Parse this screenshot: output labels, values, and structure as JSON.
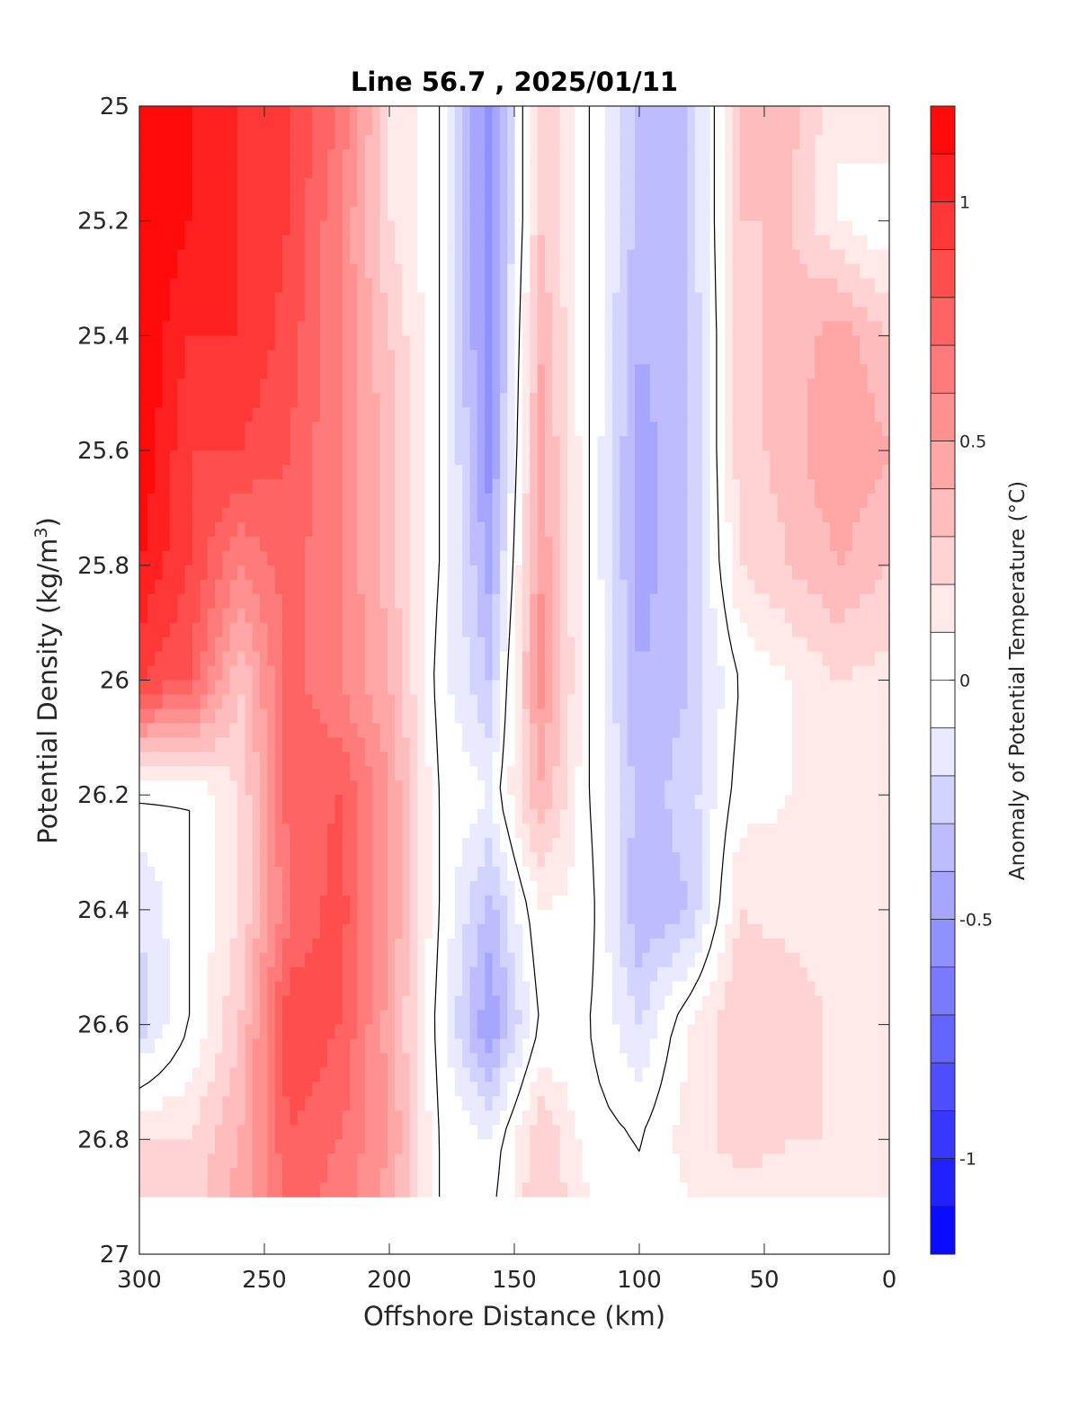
{
  "chart_data": {
    "type": "heatmap",
    "subtype": "filled-contour",
    "title": "Line 56.7 , 2025/01/11",
    "xlabel": "Offshore Distance (km)",
    "ylabel_main": "Potential Density (kg/m",
    "ylabel_sup": "3",
    "ylabel_tail": ")",
    "colorbar_label": "Anomaly of Potential Temperature (°C)",
    "xlim": [
      300,
      0
    ],
    "ylim": [
      25,
      27
    ],
    "x_reversed": true,
    "y_reversed": true,
    "xticks": [
      300,
      250,
      200,
      150,
      100,
      50,
      0
    ],
    "xtick_labels": [
      "300",
      "250",
      "200",
      "150",
      "100",
      "50",
      "0"
    ],
    "yticks": [
      25,
      25.2,
      25.4,
      25.6,
      25.8,
      26,
      26.2,
      26.4,
      26.6,
      26.8,
      27
    ],
    "ytick_labels": [
      "25",
      "25.2",
      "25.4",
      "25.6",
      "25.8",
      "26",
      "26.2",
      "26.4",
      "26.6",
      "26.8",
      "27"
    ],
    "colorbar": {
      "range": [
        -1.2,
        1.2
      ],
      "step": 0.1,
      "ticks": [
        1,
        0.5,
        0,
        -0.5,
        -1
      ],
      "tick_labels": [
        "1",
        "0.5",
        "0",
        "-0.5",
        "-1"
      ],
      "colormap": "blue-white-red"
    },
    "data_extent": {
      "density_min": 25,
      "density_max": 26.9
    },
    "zero_contour_lines": true,
    "anomaly_field": {
      "x": [
        0,
        20,
        40,
        60,
        80,
        100,
        120,
        140,
        160,
        180,
        200,
        220,
        240,
        260,
        280,
        300
      ],
      "y": [
        25.0,
        25.2,
        25.4,
        25.6,
        25.8,
        26.0,
        26.2,
        26.4,
        26.6,
        26.8,
        26.9
      ],
      "values": [
        [
          0.2,
          0.1,
          0.35,
          0.3,
          -0.3,
          -0.35,
          0.0,
          0.3,
          -0.6,
          0.0,
          0.2,
          0.7,
          0.9,
          1.0,
          1.1,
          1.2
        ],
        [
          0.0,
          0.1,
          0.3,
          0.3,
          -0.3,
          -0.35,
          0.0,
          0.3,
          -0.6,
          0.0,
          0.2,
          0.6,
          0.9,
          1.0,
          1.1,
          1.2
        ],
        [
          0.3,
          0.45,
          0.35,
          0.25,
          -0.3,
          -0.4,
          0.0,
          0.4,
          -0.6,
          0.0,
          0.3,
          0.6,
          0.85,
          1.0,
          1.0,
          1.2
        ],
        [
          0.4,
          0.5,
          0.35,
          0.25,
          -0.3,
          -0.45,
          0.0,
          0.45,
          -0.55,
          0.0,
          0.35,
          0.6,
          0.8,
          0.9,
          0.9,
          1.2
        ],
        [
          0.3,
          0.4,
          0.3,
          0.2,
          -0.3,
          -0.45,
          0.0,
          0.5,
          -0.45,
          0.0,
          0.35,
          0.6,
          0.75,
          0.6,
          0.9,
          1.1
        ],
        [
          0.15,
          0.2,
          0.1,
          0.0,
          -0.3,
          -0.4,
          0.0,
          0.55,
          -0.3,
          -0.05,
          0.4,
          0.6,
          0.75,
          0.3,
          0.8,
          0.9
        ],
        [
          0.1,
          0.15,
          0.1,
          0.05,
          -0.25,
          -0.35,
          0.0,
          0.4,
          -0.1,
          0.0,
          0.5,
          0.8,
          0.75,
          0.2,
          0.0,
          0.0
        ],
        [
          0.1,
          0.15,
          0.15,
          0.2,
          -0.3,
          -0.4,
          0.05,
          0.1,
          -0.35,
          0.0,
          0.5,
          0.85,
          0.7,
          0.2,
          0.0,
          -0.2
        ],
        [
          0.1,
          0.15,
          0.3,
          0.3,
          0.1,
          -0.2,
          0.0,
          0.0,
          -0.5,
          -0.05,
          0.45,
          0.8,
          0.9,
          0.3,
          0.0,
          -0.25
        ],
        [
          0.1,
          0.2,
          0.2,
          0.25,
          0.15,
          0.0,
          0.05,
          0.3,
          -0.1,
          0.0,
          0.5,
          0.7,
          0.8,
          0.4,
          0.2,
          0.2
        ],
        [
          0.1,
          0.15,
          0.15,
          0.15,
          0.1,
          0.0,
          0.1,
          0.3,
          -0.05,
          0.0,
          0.45,
          0.65,
          0.75,
          0.45,
          0.25,
          0.2
        ]
      ]
    }
  }
}
